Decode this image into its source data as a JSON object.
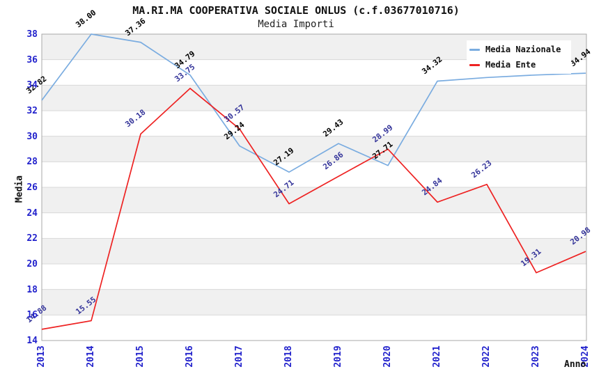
{
  "title": "MA.RI.MA COOPERATIVA SOCIALE ONLUS (c.f.03677010716)",
  "subtitle": "Media Importi",
  "axes": {
    "y_label": "Media",
    "x_label": "Anno",
    "y_ticks": [
      38,
      36,
      34,
      32,
      30,
      28,
      26,
      24,
      22,
      20,
      18,
      16,
      14
    ],
    "tick_color": "#2222CC"
  },
  "legend": {
    "items": [
      {
        "label": "Media Nazionale",
        "color": "#7AACE0"
      },
      {
        "label": "Media Ente",
        "color": "#EE2222"
      }
    ]
  },
  "chart_data": {
    "type": "line",
    "title": "MA.RI.MA COOPERATIVA SOCIALE ONLUS (c.f.03677010716)",
    "subtitle": "Media Importi",
    "xlabel": "Anno",
    "ylabel": "Media",
    "ylim": [
      14,
      38
    ],
    "grid": "horizontal-bands",
    "legend_position": "top-right",
    "categories": [
      "2013",
      "2014",
      "2015",
      "2016",
      "2017",
      "2018",
      "2019",
      "2020",
      "2021",
      "2022",
      "2023",
      "2024"
    ],
    "series": [
      {
        "name": "Media Nazionale",
        "color": "#7AACE0",
        "label_color": "#000000",
        "values": [
          32.82,
          38.0,
          37.36,
          34.79,
          29.24,
          27.19,
          29.43,
          27.71,
          34.32,
          34.6,
          34.8,
          34.94
        ],
        "labels": [
          "32.82",
          "38.00",
          "37.36",
          "34.79",
          "29.24",
          "27.19",
          "29.43",
          "27.71",
          "34.32",
          "",
          "",
          "34.94"
        ]
      },
      {
        "name": "Media Ente",
        "color": "#EE2222",
        "label_color": "#333399",
        "values": [
          14.88,
          15.55,
          30.18,
          33.75,
          30.57,
          24.71,
          26.86,
          28.99,
          24.84,
          26.23,
          19.31,
          20.98
        ],
        "labels": [
          "14.88",
          "15.55",
          "30.18",
          "33.75",
          "30.57",
          "24.71",
          "26.86",
          "28.99",
          "24.84",
          "26.23",
          "19.31",
          "20.98"
        ]
      }
    ]
  },
  "colors": {
    "band_gray": "#F0F0F0",
    "grid_line": "#D8D8D8",
    "plot_border": "#A8A8A8",
    "background": "#FFFFFF"
  }
}
